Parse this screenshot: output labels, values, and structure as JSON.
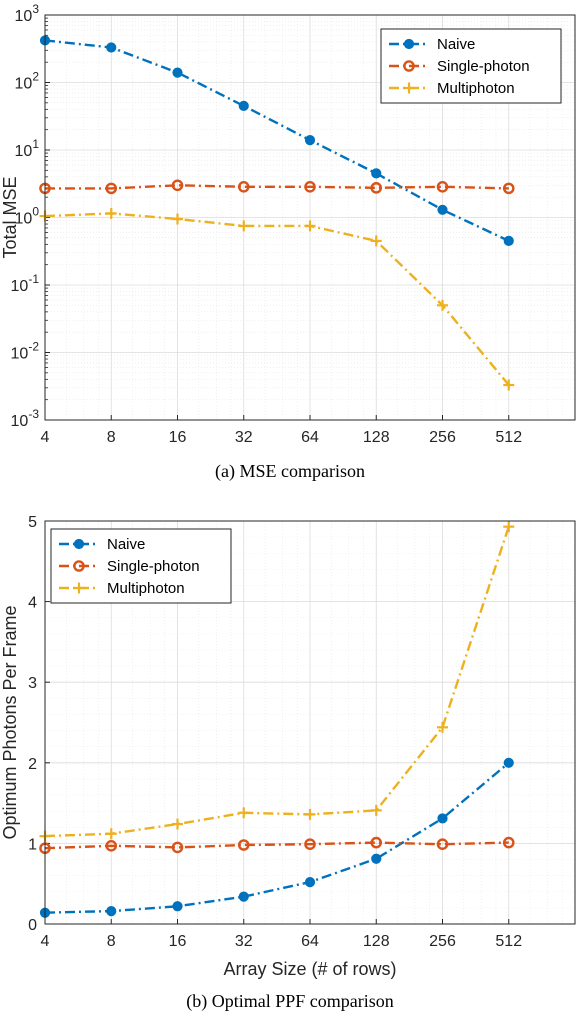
{
  "colors": {
    "naive": "#0072BD",
    "single": "#D95319",
    "multi": "#EDB120"
  },
  "chart_data": [
    {
      "type": "line",
      "caption": "(a) MSE comparison",
      "xlabel": "",
      "ylabel": "Total MSE",
      "yscale": "log",
      "ylim": [
        0.001,
        1000
      ],
      "xscale": "log2",
      "xlim": [
        4,
        1024
      ],
      "x": [
        4,
        8,
        16,
        32,
        64,
        128,
        256,
        512
      ],
      "x_tick_labels": [
        "4",
        "8",
        "16",
        "32",
        "64",
        "128",
        "256",
        "512"
      ],
      "y_tick_exponents": [
        "3",
        "2",
        "1",
        "0",
        "-1",
        "-2",
        "-3"
      ],
      "y_tick_base": "10",
      "legend_position": "top-right",
      "grid": true,
      "series": [
        {
          "name": "Naive",
          "color": "#0072BD",
          "marker": "filled-circle",
          "line": "dash-dot",
          "values": [
            420,
            330,
            140,
            45,
            14,
            4.5,
            1.3,
            0.45
          ]
        },
        {
          "name": "Single-photon",
          "color": "#D95319",
          "marker": "open-circle",
          "line": "dash-dot",
          "values": [
            2.7,
            2.7,
            3.0,
            2.85,
            2.85,
            2.75,
            2.85,
            2.7
          ]
        },
        {
          "name": "Multiphoton",
          "color": "#EDB120",
          "marker": "plus",
          "line": "dash-dot",
          "values": [
            1.05,
            1.15,
            0.95,
            0.75,
            0.75,
            0.45,
            0.05,
            0.0033
          ]
        }
      ]
    },
    {
      "type": "line",
      "caption": "(b) Optimal PPF comparison",
      "xlabel": "Array Size (# of rows)",
      "ylabel": "Optimum Photons Per Frame",
      "yscale": "linear",
      "ylim": [
        0,
        5
      ],
      "xscale": "log2",
      "xlim": [
        4,
        1024
      ],
      "x": [
        4,
        8,
        16,
        32,
        64,
        128,
        256,
        512
      ],
      "x_tick_labels": [
        "4",
        "8",
        "16",
        "32",
        "64",
        "128",
        "256",
        "512"
      ],
      "y_tick_labels": [
        "0",
        "1",
        "2",
        "3",
        "4",
        "5"
      ],
      "legend_position": "top-left",
      "grid": true,
      "series": [
        {
          "name": "Naive",
          "color": "#0072BD",
          "marker": "filled-circle",
          "line": "dash-dot",
          "values": [
            0.14,
            0.16,
            0.22,
            0.34,
            0.52,
            0.81,
            1.31,
            2.0
          ]
        },
        {
          "name": "Single-photon",
          "color": "#D95319",
          "marker": "open-circle",
          "line": "dash-dot",
          "values": [
            0.94,
            0.97,
            0.95,
            0.98,
            0.99,
            1.01,
            0.99,
            1.01
          ]
        },
        {
          "name": "Multiphoton",
          "color": "#EDB120",
          "marker": "plus",
          "line": "dash-dot",
          "values": [
            1.09,
            1.12,
            1.24,
            1.38,
            1.36,
            1.41,
            2.44,
            4.93
          ]
        }
      ]
    }
  ]
}
